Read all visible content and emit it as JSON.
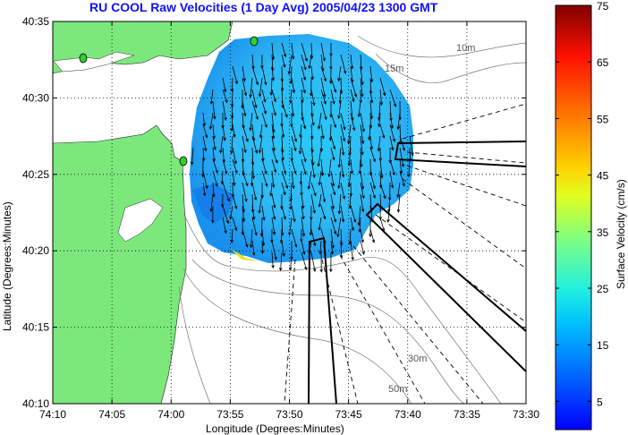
{
  "chart_data": {
    "type": "heatmap",
    "title": "RU COOL Raw Velocities (1 Day Avg) 2005/04/23 1300 GMT",
    "xlabel": "Longitude (Degrees:Minutes)",
    "ylabel": "Latitude (Degrees:Minutes)",
    "x_tick_labels": [
      "74:10",
      "74:05",
      "74:00",
      "73:55",
      "73:50",
      "73:45",
      "73:40",
      "73:35",
      "73:30"
    ],
    "y_tick_labels": [
      "40:35",
      "40:30",
      "40:25",
      "40:20",
      "40:15",
      "40:10"
    ],
    "xlim_minutes_west": [
      4450,
      4410
    ],
    "ylim_minutes_north": [
      2410,
      2435
    ],
    "grid": true,
    "colorbar": {
      "label": "Surface Velocity (cm/s)",
      "tick_labels": [
        "75",
        "65",
        "55",
        "45",
        "35",
        "25",
        "15",
        "5"
      ],
      "range": [
        0,
        75
      ]
    },
    "contour_labels": [
      "10m",
      "15m",
      "30m",
      "50m"
    ],
    "land_color": "#7ce87c",
    "speed_field_typical_cm_s": 15,
    "predominant_flow_direction": "south"
  }
}
